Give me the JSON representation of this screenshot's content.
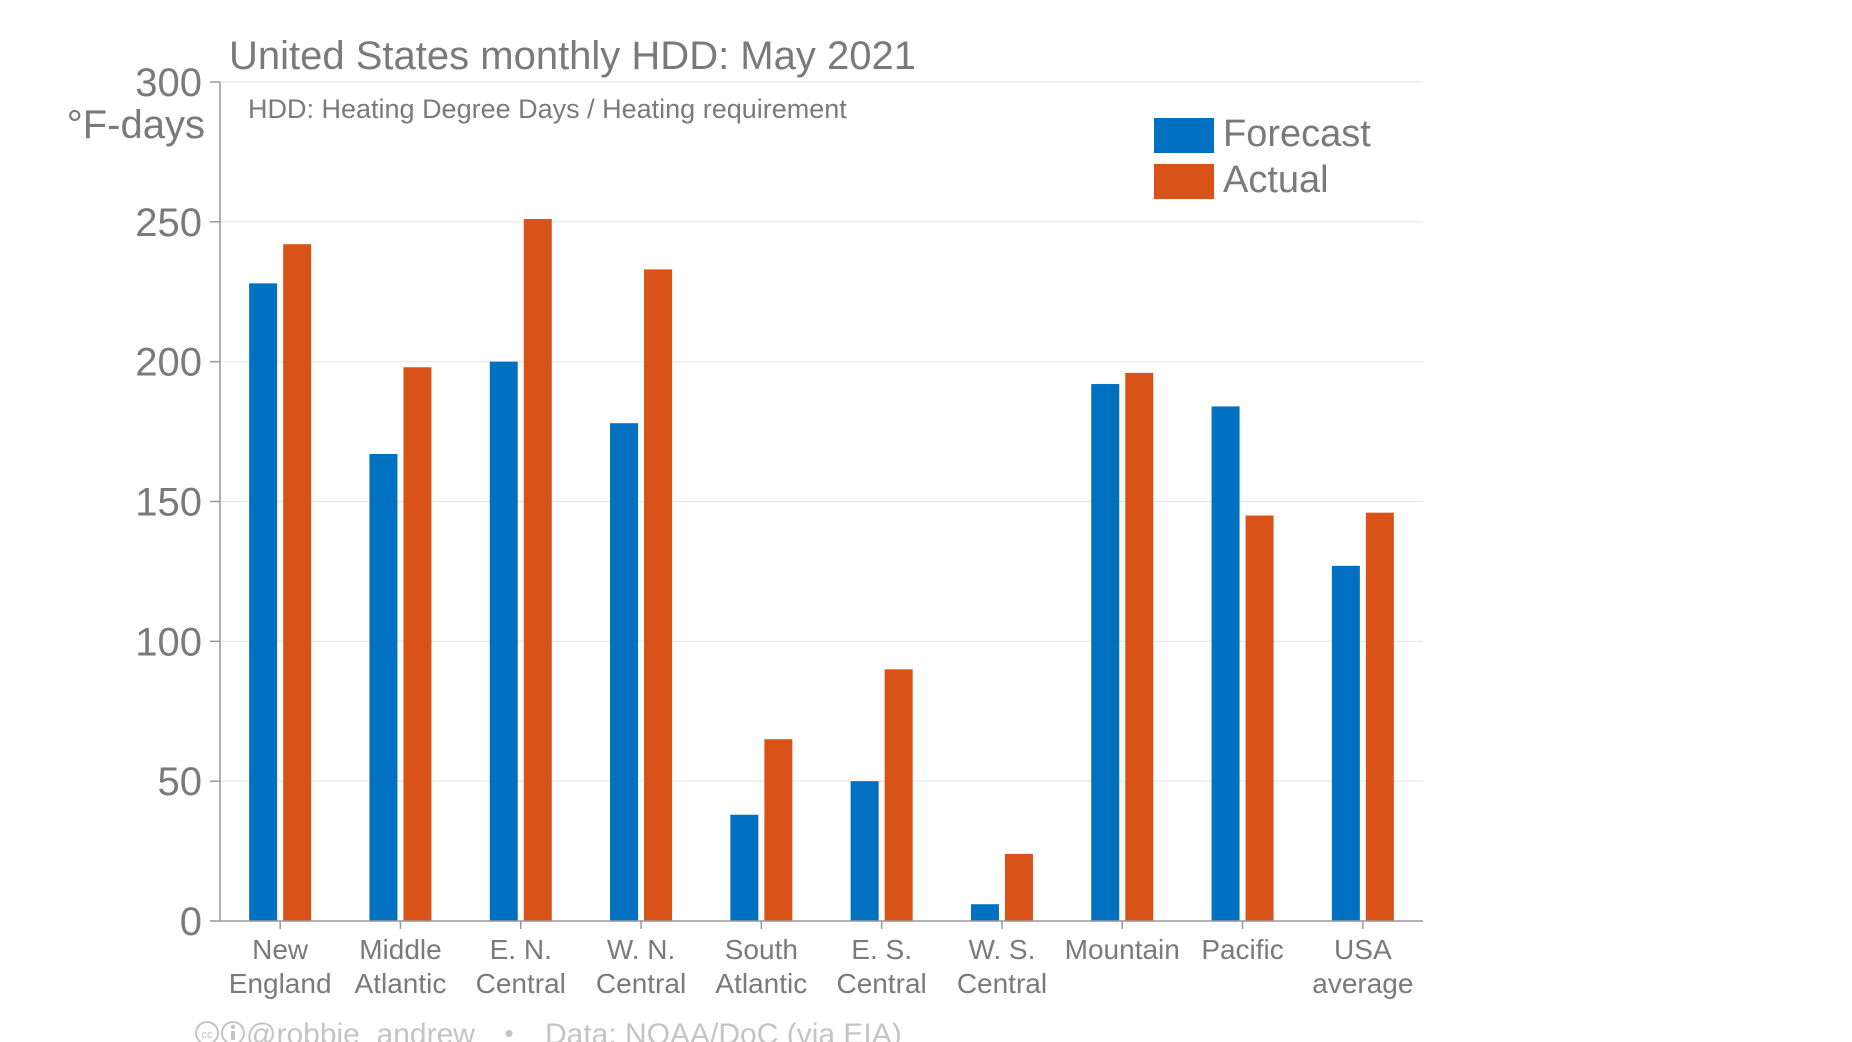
{
  "chart_data": {
    "type": "bar",
    "title": "United States monthly HDD: May 2021",
    "subtitle": "HDD: Heating Degree Days / Heating requirement",
    "ylabel": "°F-days",
    "ylim": [
      0,
      300
    ],
    "yticks": [
      0,
      50,
      100,
      150,
      200,
      250,
      300
    ],
    "grid": true,
    "legend_position": "top-right",
    "categories": [
      [
        "New",
        "England"
      ],
      [
        "Middle",
        "Atlantic"
      ],
      [
        "E. N.",
        "Central"
      ],
      [
        "W. N.",
        "Central"
      ],
      [
        "South",
        "Atlantic"
      ],
      [
        "E. S.",
        "Central"
      ],
      [
        "W. S.",
        "Central"
      ],
      [
        "Mountain"
      ],
      [
        "Pacific"
      ],
      [
        "USA",
        "average"
      ]
    ],
    "series": [
      {
        "name": "Forecast",
        "color": "#0070c0",
        "values": [
          228,
          167,
          200,
          178,
          38,
          50,
          6,
          192,
          184,
          127
        ]
      },
      {
        "name": "Actual",
        "color": "#d95319",
        "values": [
          242,
          198,
          251,
          233,
          65,
          90,
          24,
          196,
          145,
          146
        ]
      }
    ]
  },
  "colors": {
    "text": "#7a7a7a",
    "gridline": "#e6e6e6",
    "axis": "#999999",
    "footer": "#c4c4c4"
  },
  "footer": {
    "license_icons": "cc-by-icon",
    "author": "@robbie_andrew",
    "separator": "•",
    "source": "Data: NOAA/DoC (via EIA)"
  }
}
